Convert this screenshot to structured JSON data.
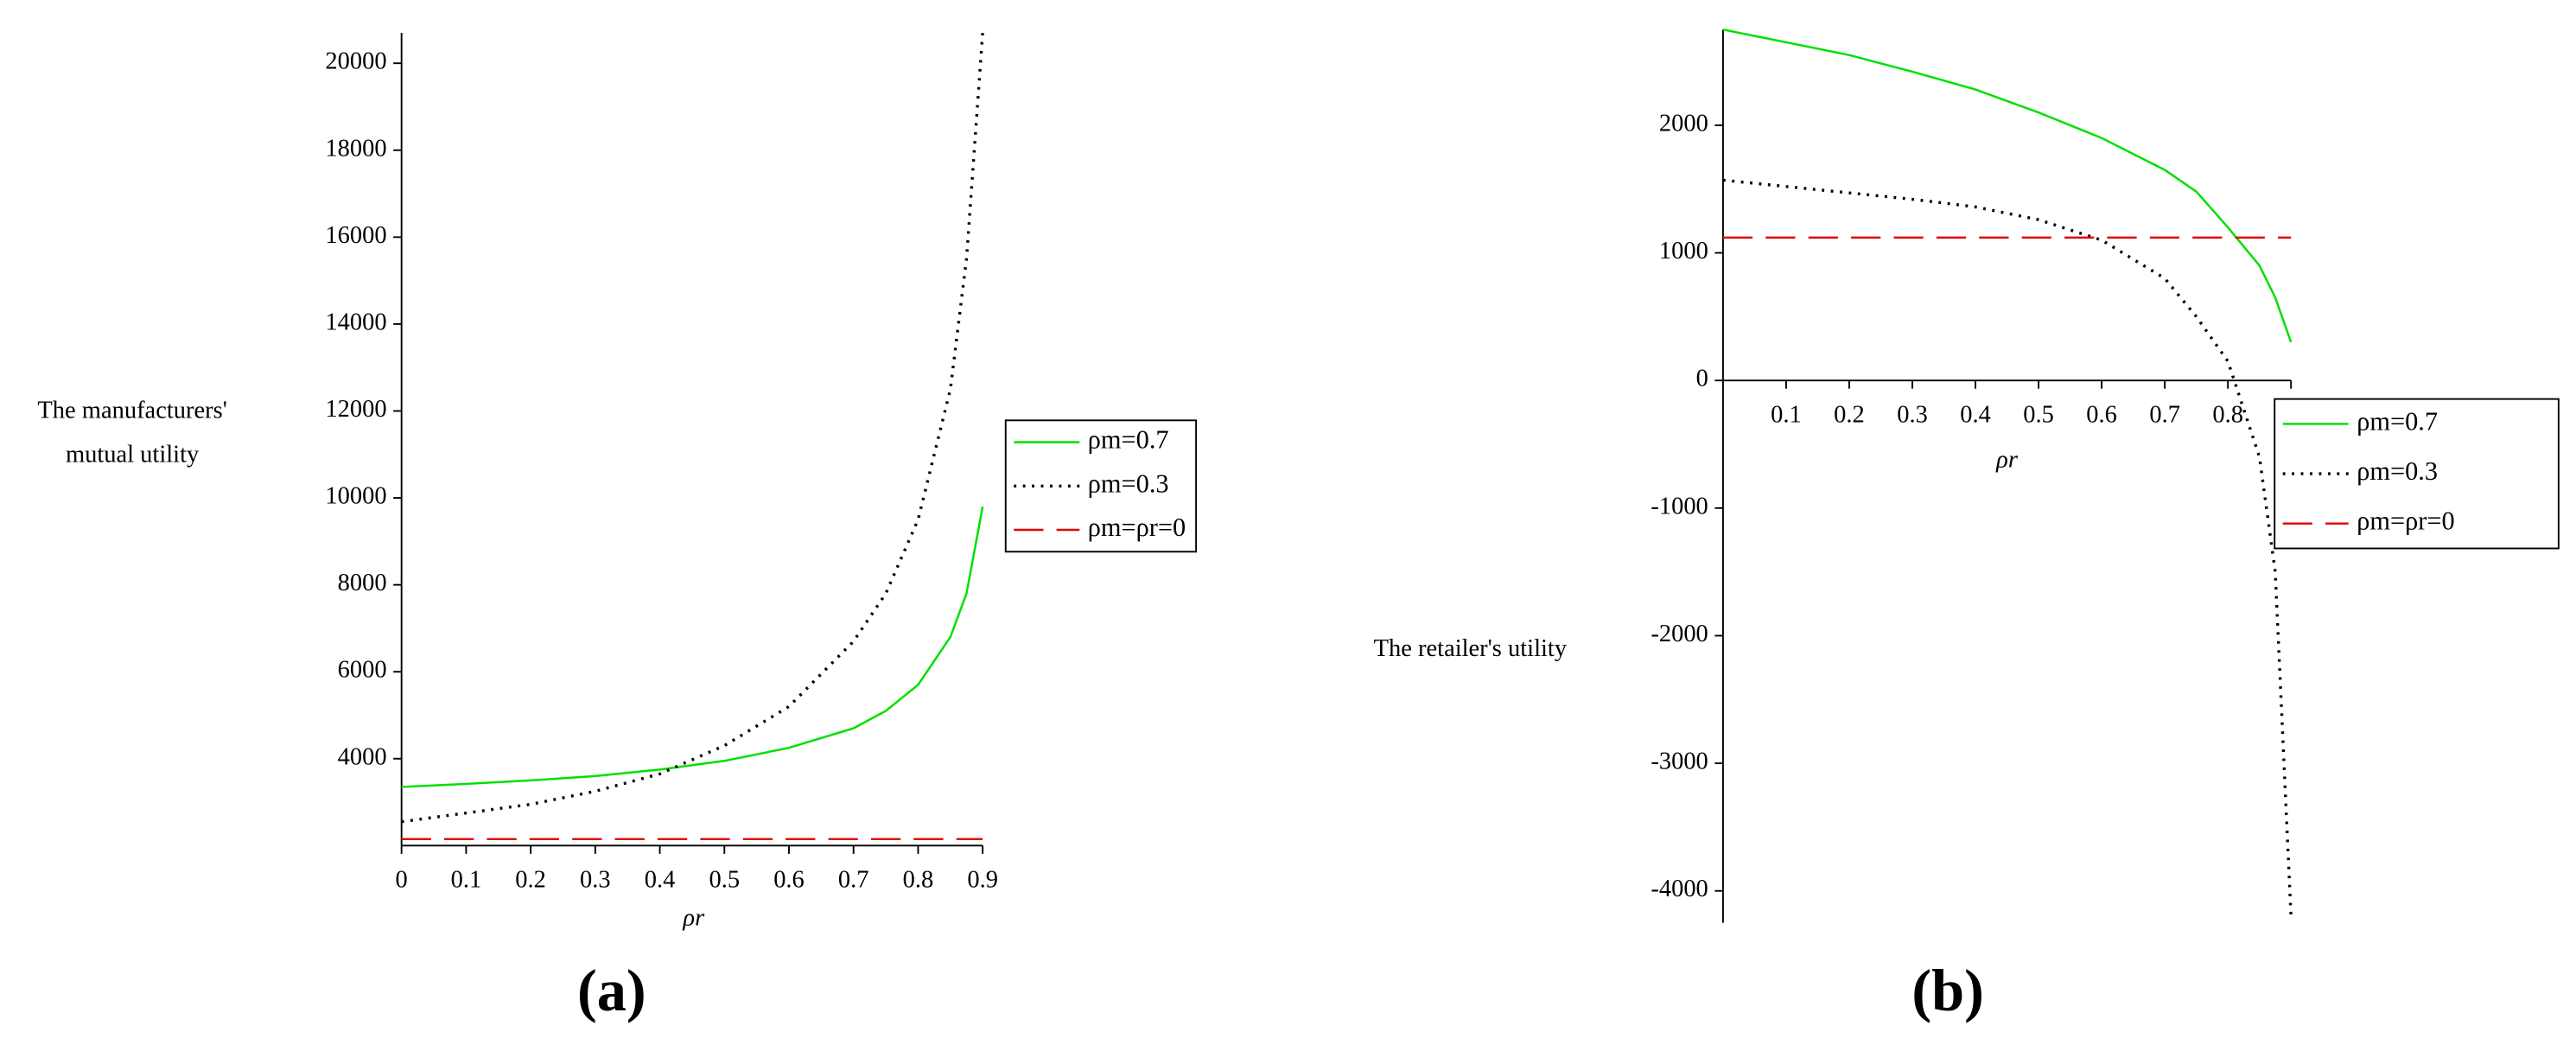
{
  "chart_data": [
    {
      "type": "line",
      "panel_label": "(a)",
      "y_label": [
        "The manufacturers'",
        "mutual utility"
      ],
      "x_label": "ρr",
      "x": [
        0,
        0.1,
        0.2,
        0.3,
        0.4,
        0.5,
        0.6,
        0.7,
        0.75,
        0.8,
        0.85,
        0.875,
        0.9
      ],
      "xlim": [
        0,
        0.9
      ],
      "xticks": [
        0,
        0.1,
        0.2,
        0.3,
        0.4,
        0.5,
        0.6,
        0.7,
        0.8,
        0.9
      ],
      "ylim": [
        2000,
        20700
      ],
      "yticks": [
        4000,
        6000,
        8000,
        10000,
        12000,
        14000,
        16000,
        18000,
        20000
      ],
      "grid": false,
      "legend": "right",
      "series": [
        {
          "name": "ρm=0.7",
          "color": "#00e000",
          "dash": "solid",
          "values": [
            3350,
            3420,
            3500,
            3600,
            3750,
            3950,
            4250,
            4700,
            5100,
            5700,
            6800,
            7800,
            9800
          ]
        },
        {
          "name": "ρm=0.3",
          "color": "#000000",
          "dash": "dotted",
          "values": [
            2550,
            2750,
            2950,
            3250,
            3650,
            4300,
            5200,
            6700,
            7800,
            9500,
            12500,
            15500,
            20700
          ]
        },
        {
          "name": "ρm=ρr=0",
          "color": "#e00000",
          "dash": "dashed",
          "values": [
            2150,
            2150,
            2150,
            2150,
            2150,
            2150,
            2150,
            2150,
            2150,
            2150,
            2150,
            2150,
            2150
          ]
        }
      ]
    },
    {
      "type": "line",
      "panel_label": "(b)",
      "y_label": [
        "The retailer's utility"
      ],
      "x_label": "ρr",
      "x": [
        0,
        0.1,
        0.2,
        0.3,
        0.4,
        0.5,
        0.6,
        0.7,
        0.75,
        0.8,
        0.85,
        0.875,
        0.9
      ],
      "xlim": [
        0,
        0.9
      ],
      "xticks": [
        0.1,
        0.2,
        0.3,
        0.4,
        0.5,
        0.6,
        0.7,
        0.8,
        0.9
      ],
      "ylim": [
        -4250,
        2750
      ],
      "yticks": [
        -4000,
        -3000,
        -2000,
        -1000,
        0,
        1000,
        2000
      ],
      "grid": false,
      "legend": "right",
      "series": [
        {
          "name": "ρm=0.7",
          "color": "#00e000",
          "dash": "solid",
          "values": [
            2750,
            2650,
            2550,
            2420,
            2280,
            2100,
            1900,
            1650,
            1480,
            1200,
            900,
            650,
            300
          ]
        },
        {
          "name": "ρm=0.3",
          "color": "#000000",
          "dash": "dotted",
          "values": [
            1570,
            1520,
            1470,
            1420,
            1360,
            1260,
            1100,
            800,
            500,
            150,
            -600,
            -1500,
            -4200
          ]
        },
        {
          "name": "ρm=ρr=0",
          "color": "#e00000",
          "dash": "dashed",
          "values": [
            1120,
            1120,
            1120,
            1120,
            1120,
            1120,
            1120,
            1120,
            1120,
            1120,
            1120,
            1120,
            1120
          ]
        }
      ]
    }
  ]
}
